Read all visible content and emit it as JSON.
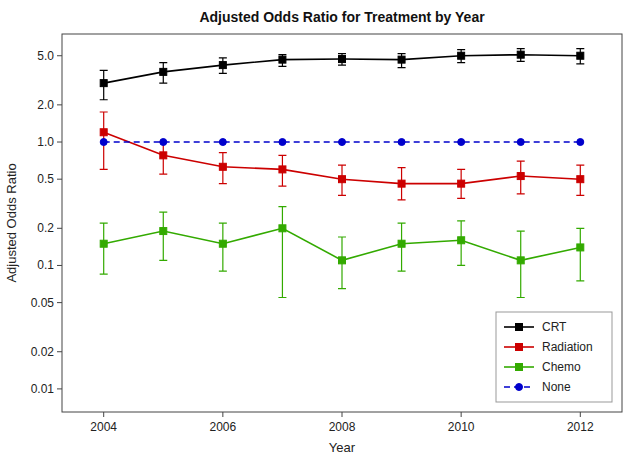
{
  "chart_data": {
    "type": "line",
    "title": "Adjusted Odds Ratio for Treatment by Year",
    "x_label": "Year",
    "y_label": "Adjusted Odds Ratio",
    "x": [
      2004,
      2005,
      2006,
      2007,
      2008,
      2009,
      2010,
      2011,
      2012
    ],
    "series": [
      {
        "name": "CRT",
        "color": "#000000",
        "marker": "square",
        "line_style": "solid",
        "values": [
          3.0,
          3.7,
          4.2,
          4.65,
          4.7,
          4.65,
          5.0,
          5.1,
          5.0
        ],
        "lower": [
          2.2,
          3.0,
          3.6,
          4.1,
          4.2,
          4.0,
          4.4,
          4.5,
          4.3
        ],
        "upper": [
          3.8,
          4.4,
          4.8,
          5.1,
          5.2,
          5.2,
          5.6,
          5.7,
          5.7
        ]
      },
      {
        "name": "Radiation",
        "color": "#cc0000",
        "marker": "square",
        "line_style": "solid",
        "values": [
          1.2,
          0.78,
          0.63,
          0.6,
          0.5,
          0.46,
          0.46,
          0.53,
          0.5
        ],
        "lower": [
          0.6,
          0.55,
          0.46,
          0.44,
          0.37,
          0.34,
          0.35,
          0.38,
          0.37
        ],
        "upper": [
          1.75,
          1.0,
          0.82,
          0.78,
          0.65,
          0.62,
          0.6,
          0.7,
          0.65
        ]
      },
      {
        "name": "Chemo",
        "color": "#33aa00",
        "marker": "square",
        "line_style": "solid",
        "values": [
          0.15,
          0.19,
          0.15,
          0.2,
          0.11,
          0.15,
          0.16,
          0.11,
          0.14
        ],
        "lower": [
          0.085,
          0.11,
          0.09,
          0.055,
          0.065,
          0.09,
          0.1,
          0.055,
          0.075
        ],
        "upper": [
          0.22,
          0.27,
          0.22,
          0.3,
          0.17,
          0.22,
          0.23,
          0.19,
          0.2
        ]
      },
      {
        "name": "None",
        "color": "#0000cc",
        "marker": "circle",
        "line_style": "dashed",
        "values": [
          1.0,
          1.0,
          1.0,
          1.0,
          1.0,
          1.0,
          1.0,
          1.0,
          1.0
        ]
      }
    ],
    "log": "y",
    "xlim": [
      2003.3,
      2012.7
    ],
    "xticks": [
      2004,
      2006,
      2008,
      2010,
      2012
    ],
    "ylim": [
      0.0065,
      7.5
    ],
    "yticks": [
      0.01,
      0.02,
      0.05,
      0.1,
      0.2,
      0.5,
      {
        "value": 1.0,
        "label": "1.0"
      },
      {
        "value": 2.0,
        "label": "2.0"
      },
      {
        "value": 5.0,
        "label": "5.0"
      }
    ],
    "grid": false,
    "legend": "lower right"
  }
}
